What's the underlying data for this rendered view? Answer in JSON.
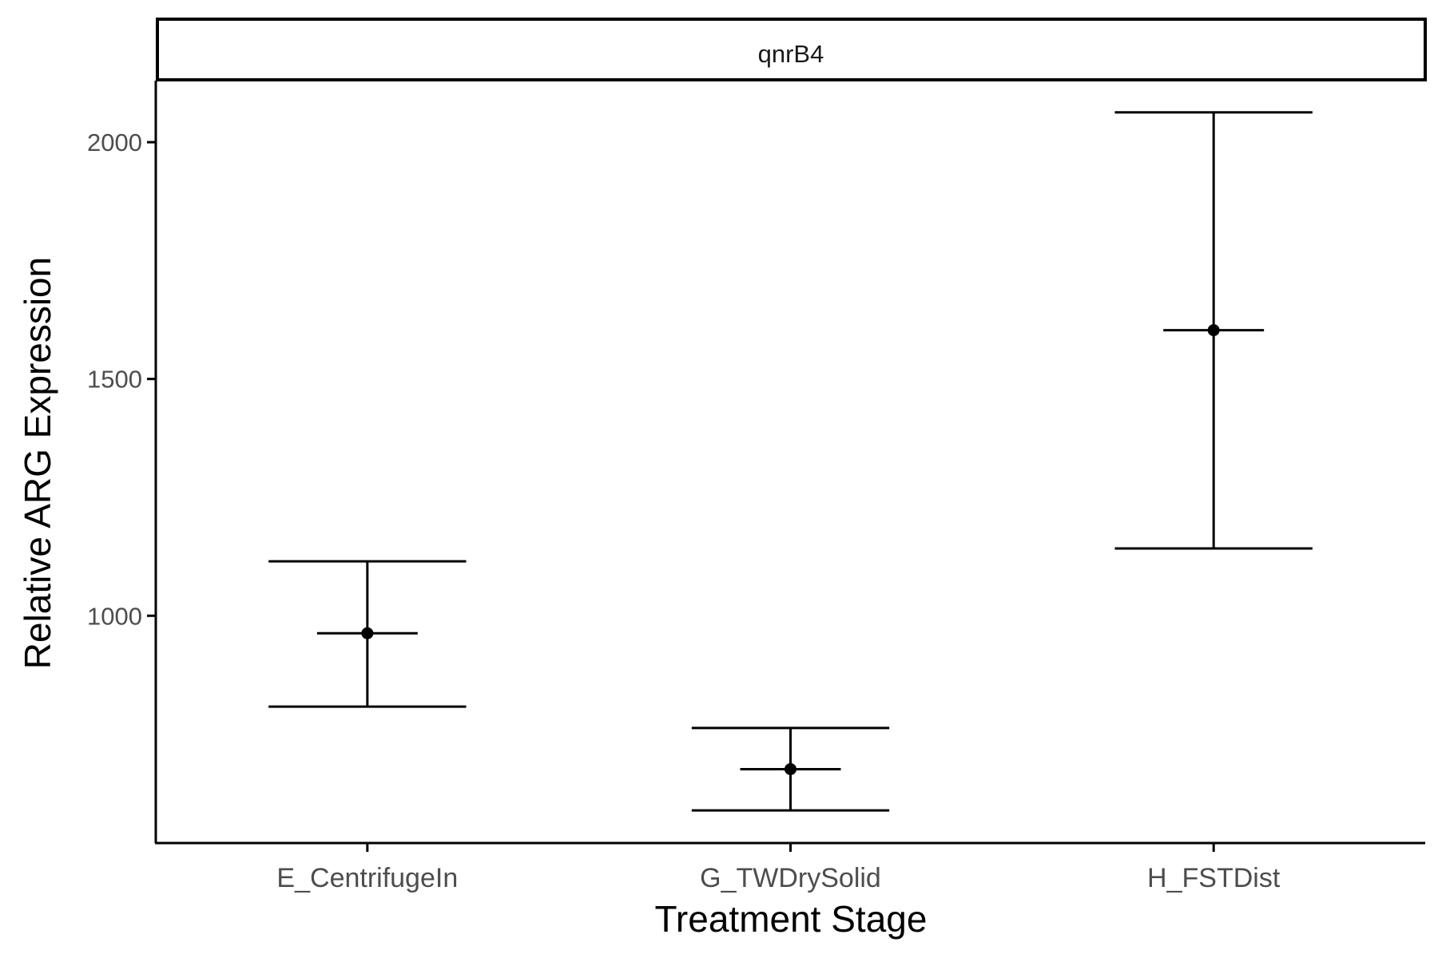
{
  "chart_data": {
    "type": "errorbar",
    "facet_label": "qnrB4",
    "xlabel": "Treatment Stage",
    "ylabel": "Relative ARG Expression",
    "categories": [
      "E_CentrifugeIn",
      "G_TWDrySolid",
      "H_FSTDist"
    ],
    "series": [
      {
        "points": [
          {
            "category": "E_CentrifugeIn",
            "mean": 963,
            "lower": 808,
            "upper": 1115
          },
          {
            "category": "G_TWDrySolid",
            "mean": 676,
            "lower": 589,
            "upper": 763
          },
          {
            "category": "H_FSTDist",
            "mean": 1603,
            "lower": 1142,
            "upper": 2063
          }
        ]
      }
    ],
    "ylim": [
      520,
      2130
    ],
    "yticks": [
      1000,
      1500,
      2000
    ],
    "ytick_labels": [
      "1000",
      "1500",
      "2000"
    ],
    "grid": false,
    "legend": "none",
    "colors": {
      "marks": "#000000",
      "tick_labels": "#4d4d4d",
      "background": "#ffffff"
    }
  }
}
